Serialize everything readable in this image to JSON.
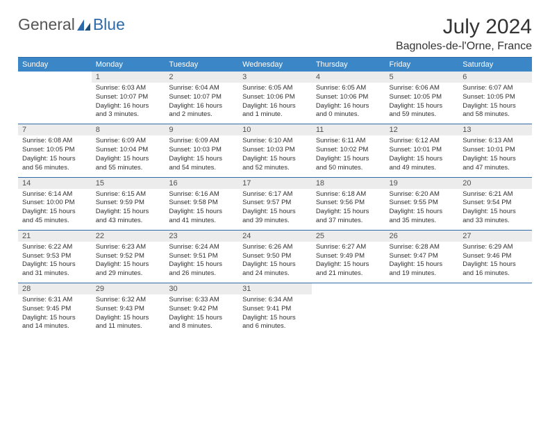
{
  "logo": {
    "general": "General",
    "blue": "Blue"
  },
  "header": {
    "month": "July 2024",
    "location": "Bagnoles-de-l'Orne, France"
  },
  "weekdays": [
    "Sunday",
    "Monday",
    "Tuesday",
    "Wednesday",
    "Thursday",
    "Friday",
    "Saturday"
  ],
  "colors": {
    "header_bg": "#3b86c7",
    "header_text": "#ffffff",
    "daynum_bg": "#ececec",
    "rule": "#2f6aa8",
    "text": "#303030"
  },
  "weeks": [
    [
      {
        "n": "",
        "sr": "",
        "ss": "",
        "dl": "",
        "empty": true
      },
      {
        "n": "1",
        "sr": "Sunrise: 6:03 AM",
        "ss": "Sunset: 10:07 PM",
        "dl": "Daylight: 16 hours and 3 minutes."
      },
      {
        "n": "2",
        "sr": "Sunrise: 6:04 AM",
        "ss": "Sunset: 10:07 PM",
        "dl": "Daylight: 16 hours and 2 minutes."
      },
      {
        "n": "3",
        "sr": "Sunrise: 6:05 AM",
        "ss": "Sunset: 10:06 PM",
        "dl": "Daylight: 16 hours and 1 minute."
      },
      {
        "n": "4",
        "sr": "Sunrise: 6:05 AM",
        "ss": "Sunset: 10:06 PM",
        "dl": "Daylight: 16 hours and 0 minutes."
      },
      {
        "n": "5",
        "sr": "Sunrise: 6:06 AM",
        "ss": "Sunset: 10:05 PM",
        "dl": "Daylight: 15 hours and 59 minutes."
      },
      {
        "n": "6",
        "sr": "Sunrise: 6:07 AM",
        "ss": "Sunset: 10:05 PM",
        "dl": "Daylight: 15 hours and 58 minutes."
      }
    ],
    [
      {
        "n": "7",
        "sr": "Sunrise: 6:08 AM",
        "ss": "Sunset: 10:05 PM",
        "dl": "Daylight: 15 hours and 56 minutes."
      },
      {
        "n": "8",
        "sr": "Sunrise: 6:09 AM",
        "ss": "Sunset: 10:04 PM",
        "dl": "Daylight: 15 hours and 55 minutes."
      },
      {
        "n": "9",
        "sr": "Sunrise: 6:09 AM",
        "ss": "Sunset: 10:03 PM",
        "dl": "Daylight: 15 hours and 54 minutes."
      },
      {
        "n": "10",
        "sr": "Sunrise: 6:10 AM",
        "ss": "Sunset: 10:03 PM",
        "dl": "Daylight: 15 hours and 52 minutes."
      },
      {
        "n": "11",
        "sr": "Sunrise: 6:11 AM",
        "ss": "Sunset: 10:02 PM",
        "dl": "Daylight: 15 hours and 50 minutes."
      },
      {
        "n": "12",
        "sr": "Sunrise: 6:12 AM",
        "ss": "Sunset: 10:01 PM",
        "dl": "Daylight: 15 hours and 49 minutes."
      },
      {
        "n": "13",
        "sr": "Sunrise: 6:13 AM",
        "ss": "Sunset: 10:01 PM",
        "dl": "Daylight: 15 hours and 47 minutes."
      }
    ],
    [
      {
        "n": "14",
        "sr": "Sunrise: 6:14 AM",
        "ss": "Sunset: 10:00 PM",
        "dl": "Daylight: 15 hours and 45 minutes."
      },
      {
        "n": "15",
        "sr": "Sunrise: 6:15 AM",
        "ss": "Sunset: 9:59 PM",
        "dl": "Daylight: 15 hours and 43 minutes."
      },
      {
        "n": "16",
        "sr": "Sunrise: 6:16 AM",
        "ss": "Sunset: 9:58 PM",
        "dl": "Daylight: 15 hours and 41 minutes."
      },
      {
        "n": "17",
        "sr": "Sunrise: 6:17 AM",
        "ss": "Sunset: 9:57 PM",
        "dl": "Daylight: 15 hours and 39 minutes."
      },
      {
        "n": "18",
        "sr": "Sunrise: 6:18 AM",
        "ss": "Sunset: 9:56 PM",
        "dl": "Daylight: 15 hours and 37 minutes."
      },
      {
        "n": "19",
        "sr": "Sunrise: 6:20 AM",
        "ss": "Sunset: 9:55 PM",
        "dl": "Daylight: 15 hours and 35 minutes."
      },
      {
        "n": "20",
        "sr": "Sunrise: 6:21 AM",
        "ss": "Sunset: 9:54 PM",
        "dl": "Daylight: 15 hours and 33 minutes."
      }
    ],
    [
      {
        "n": "21",
        "sr": "Sunrise: 6:22 AM",
        "ss": "Sunset: 9:53 PM",
        "dl": "Daylight: 15 hours and 31 minutes."
      },
      {
        "n": "22",
        "sr": "Sunrise: 6:23 AM",
        "ss": "Sunset: 9:52 PM",
        "dl": "Daylight: 15 hours and 29 minutes."
      },
      {
        "n": "23",
        "sr": "Sunrise: 6:24 AM",
        "ss": "Sunset: 9:51 PM",
        "dl": "Daylight: 15 hours and 26 minutes."
      },
      {
        "n": "24",
        "sr": "Sunrise: 6:26 AM",
        "ss": "Sunset: 9:50 PM",
        "dl": "Daylight: 15 hours and 24 minutes."
      },
      {
        "n": "25",
        "sr": "Sunrise: 6:27 AM",
        "ss": "Sunset: 9:49 PM",
        "dl": "Daylight: 15 hours and 21 minutes."
      },
      {
        "n": "26",
        "sr": "Sunrise: 6:28 AM",
        "ss": "Sunset: 9:47 PM",
        "dl": "Daylight: 15 hours and 19 minutes."
      },
      {
        "n": "27",
        "sr": "Sunrise: 6:29 AM",
        "ss": "Sunset: 9:46 PM",
        "dl": "Daylight: 15 hours and 16 minutes."
      }
    ],
    [
      {
        "n": "28",
        "sr": "Sunrise: 6:31 AM",
        "ss": "Sunset: 9:45 PM",
        "dl": "Daylight: 15 hours and 14 minutes."
      },
      {
        "n": "29",
        "sr": "Sunrise: 6:32 AM",
        "ss": "Sunset: 9:43 PM",
        "dl": "Daylight: 15 hours and 11 minutes."
      },
      {
        "n": "30",
        "sr": "Sunrise: 6:33 AM",
        "ss": "Sunset: 9:42 PM",
        "dl": "Daylight: 15 hours and 8 minutes."
      },
      {
        "n": "31",
        "sr": "Sunrise: 6:34 AM",
        "ss": "Sunset: 9:41 PM",
        "dl": "Daylight: 15 hours and 6 minutes."
      },
      {
        "n": "",
        "sr": "",
        "ss": "",
        "dl": "",
        "empty": true
      },
      {
        "n": "",
        "sr": "",
        "ss": "",
        "dl": "",
        "empty": true
      },
      {
        "n": "",
        "sr": "",
        "ss": "",
        "dl": "",
        "empty": true
      }
    ]
  ]
}
